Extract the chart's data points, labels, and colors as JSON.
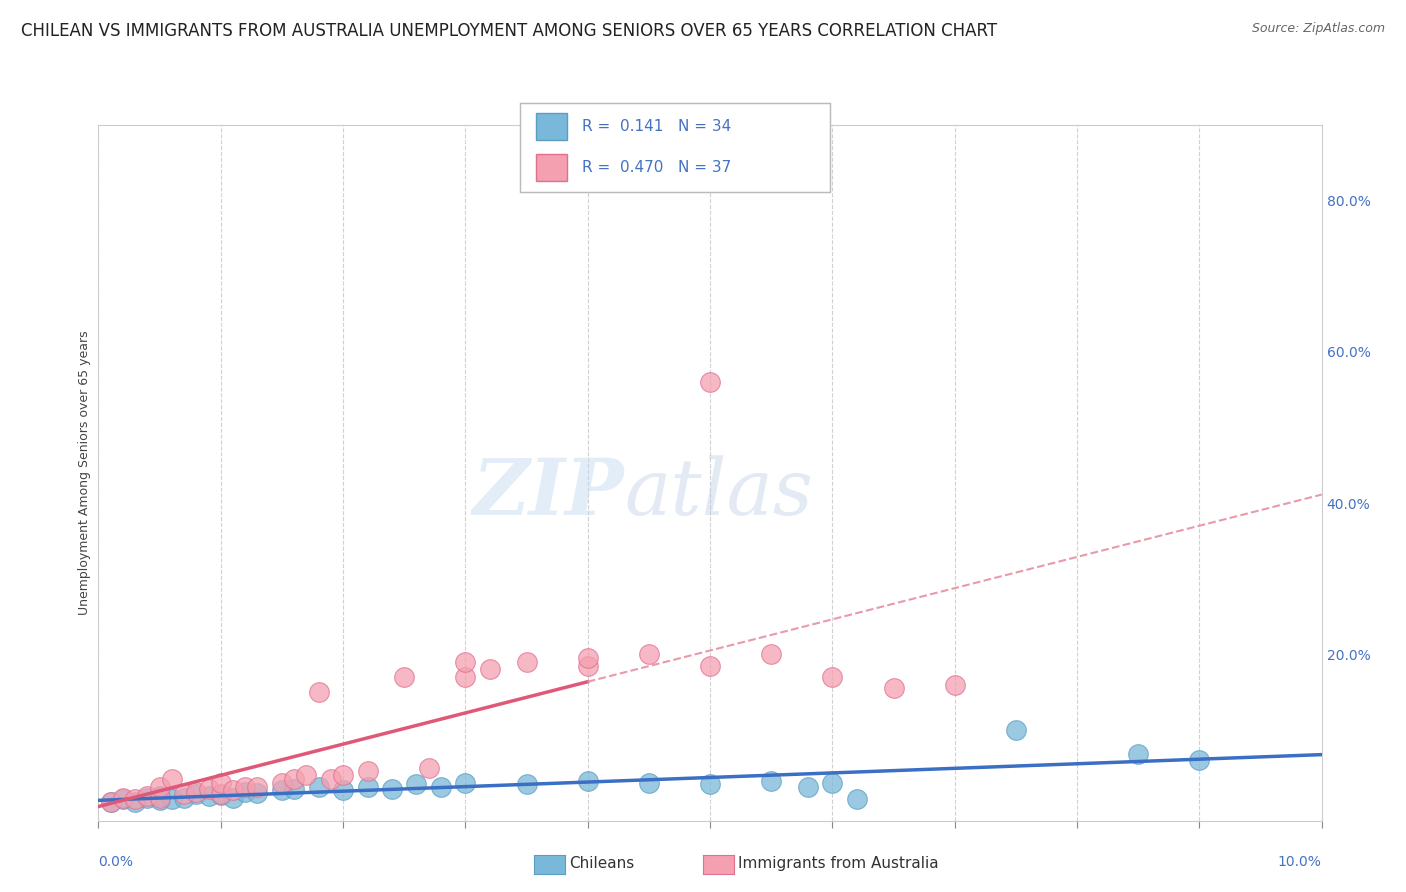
{
  "title": "CHILEAN VS IMMIGRANTS FROM AUSTRALIA UNEMPLOYMENT AMONG SENIORS OVER 65 YEARS CORRELATION CHART",
  "source": "Source: ZipAtlas.com",
  "ylabel": "Unemployment Among Seniors over 65 years",
  "xlim": [
    0.0,
    0.1
  ],
  "ylim": [
    -0.02,
    0.9
  ],
  "right_yticks": [
    0.0,
    0.2,
    0.4,
    0.6,
    0.8
  ],
  "right_yticklabels": [
    "",
    "20.0%",
    "40.0%",
    "60.0%",
    "80.0%"
  ],
  "watermark": "ZIPatlas",
  "chileans_color": "#7ab8d9",
  "chileans_edge_color": "#5a9ec4",
  "australians_color": "#f4a0b0",
  "australians_edge_color": "#e07090",
  "chileans_line_color": "#3a6fc4",
  "australians_line_color": "#e05878",
  "australians_dash_color": "#e89aaa",
  "chileans_scatter": [
    [
      0.001,
      0.005
    ],
    [
      0.002,
      0.008
    ],
    [
      0.003,
      0.005
    ],
    [
      0.004,
      0.01
    ],
    [
      0.005,
      0.007
    ],
    [
      0.005,
      0.012
    ],
    [
      0.006,
      0.008
    ],
    [
      0.007,
      0.01
    ],
    [
      0.008,
      0.015
    ],
    [
      0.009,
      0.012
    ],
    [
      0.01,
      0.014
    ],
    [
      0.011,
      0.01
    ],
    [
      0.012,
      0.018
    ],
    [
      0.013,
      0.016
    ],
    [
      0.015,
      0.02
    ],
    [
      0.016,
      0.022
    ],
    [
      0.018,
      0.024
    ],
    [
      0.02,
      0.02
    ],
    [
      0.022,
      0.025
    ],
    [
      0.024,
      0.022
    ],
    [
      0.026,
      0.028
    ],
    [
      0.028,
      0.025
    ],
    [
      0.03,
      0.03
    ],
    [
      0.035,
      0.028
    ],
    [
      0.04,
      0.032
    ],
    [
      0.045,
      0.03
    ],
    [
      0.05,
      0.028
    ],
    [
      0.055,
      0.032
    ],
    [
      0.058,
      0.025
    ],
    [
      0.06,
      0.03
    ],
    [
      0.062,
      0.008
    ],
    [
      0.075,
      0.1
    ],
    [
      0.085,
      0.068
    ],
    [
      0.09,
      0.06
    ]
  ],
  "australians_scatter": [
    [
      0.001,
      0.005
    ],
    [
      0.002,
      0.01
    ],
    [
      0.003,
      0.008
    ],
    [
      0.004,
      0.012
    ],
    [
      0.005,
      0.01
    ],
    [
      0.005,
      0.025
    ],
    [
      0.006,
      0.035
    ],
    [
      0.007,
      0.015
    ],
    [
      0.008,
      0.018
    ],
    [
      0.009,
      0.022
    ],
    [
      0.01,
      0.015
    ],
    [
      0.01,
      0.03
    ],
    [
      0.011,
      0.02
    ],
    [
      0.012,
      0.025
    ],
    [
      0.013,
      0.025
    ],
    [
      0.015,
      0.03
    ],
    [
      0.016,
      0.035
    ],
    [
      0.017,
      0.04
    ],
    [
      0.018,
      0.15
    ],
    [
      0.019,
      0.035
    ],
    [
      0.02,
      0.04
    ],
    [
      0.022,
      0.045
    ],
    [
      0.025,
      0.17
    ],
    [
      0.027,
      0.05
    ],
    [
      0.03,
      0.17
    ],
    [
      0.03,
      0.19
    ],
    [
      0.032,
      0.18
    ],
    [
      0.035,
      0.19
    ],
    [
      0.04,
      0.185
    ],
    [
      0.04,
      0.195
    ],
    [
      0.045,
      0.2
    ],
    [
      0.05,
      0.185
    ],
    [
      0.05,
      0.56
    ],
    [
      0.055,
      0.2
    ],
    [
      0.06,
      0.17
    ],
    [
      0.065,
      0.155
    ],
    [
      0.07,
      0.16
    ]
  ],
  "background_color": "#ffffff",
  "grid_color": "#cccccc",
  "title_fontsize": 12,
  "axis_label_fontsize": 9,
  "tick_fontsize": 10,
  "legend_fontsize": 12
}
